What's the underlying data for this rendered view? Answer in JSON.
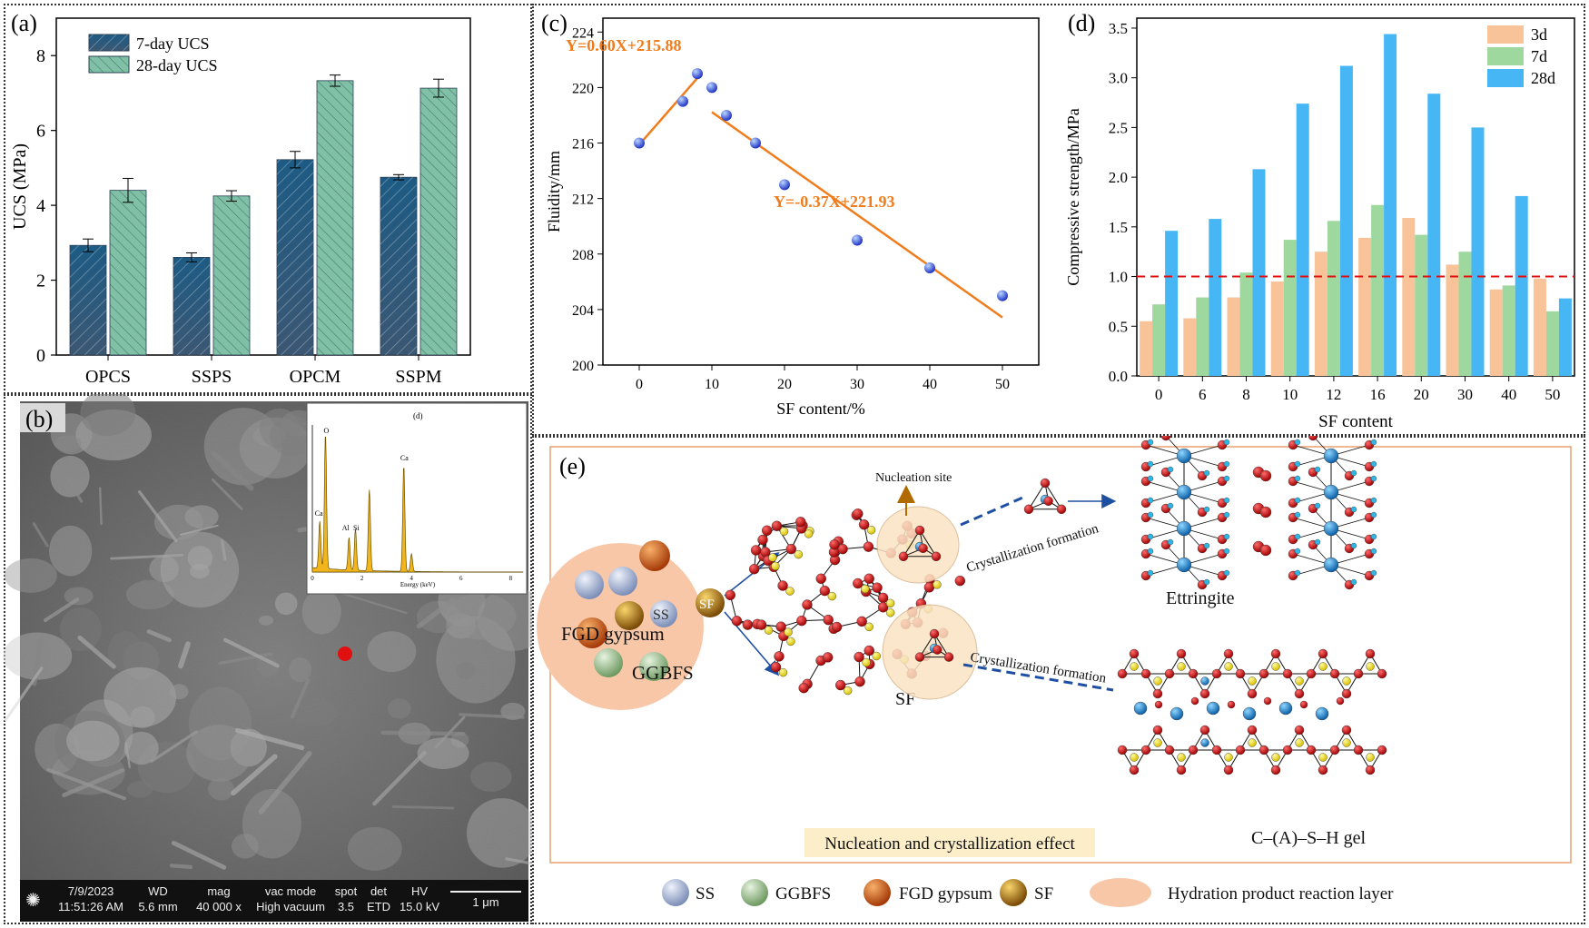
{
  "panels": {
    "a": "(a)",
    "b": "(b)",
    "c": "(c)",
    "d": "(d)",
    "e": "(e)"
  },
  "chart_data": [
    {
      "id": "a",
      "type": "bar",
      "ylabel": "UCS (MPa)",
      "ylim": [
        0,
        9
      ],
      "yticks": [
        0,
        2,
        4,
        6,
        8
      ],
      "categories": [
        "OPCS",
        "SSPS",
        "OPCM",
        "SSPM"
      ],
      "series": [
        {
          "name": "7-day UCS",
          "values": [
            2.93,
            2.61,
            5.22,
            4.75
          ],
          "errors": [
            0.17,
            0.12,
            0.22,
            0.07
          ],
          "color": "#1f5a7c"
        },
        {
          "name": "28-day UCS",
          "values": [
            4.4,
            4.25,
            7.33,
            7.13
          ],
          "errors": [
            0.32,
            0.14,
            0.15,
            0.24
          ],
          "color": "#7fc0a6"
        }
      ],
      "legend": "top-left"
    },
    {
      "id": "c",
      "type": "scatter",
      "xlabel": "SF content/%",
      "ylabel": "Fluidity/mm",
      "xlim": [
        -5,
        55
      ],
      "ylim": [
        200,
        225
      ],
      "xticks": [
        0,
        10,
        20,
        30,
        40,
        50
      ],
      "yticks": [
        200,
        204,
        208,
        212,
        216,
        220,
        224
      ],
      "points": {
        "x": [
          0,
          6,
          8,
          10,
          12,
          16,
          20,
          30,
          40,
          50
        ],
        "y": [
          216,
          219,
          221,
          220,
          218,
          216,
          213,
          209,
          207,
          205
        ]
      },
      "fits": [
        {
          "equation": "Y=0.60X+215.88",
          "slope": 0.6,
          "intercept": 215.88,
          "x_range": [
            0,
            8
          ]
        },
        {
          "equation": "Y=-0.37X+221.93",
          "slope": -0.37,
          "intercept": 221.93,
          "x_range": [
            10,
            50
          ]
        }
      ]
    },
    {
      "id": "d",
      "type": "bar",
      "xlabel": "SF content",
      "ylabel": "Compressive strength/MPa",
      "ylim": [
        0,
        3.6
      ],
      "yticks": [
        0.0,
        0.5,
        1.0,
        1.5,
        2.0,
        2.5,
        3.0,
        3.5
      ],
      "categories": [
        "0",
        "6",
        "8",
        "10",
        "12",
        "16",
        "20",
        "30",
        "40",
        "50"
      ],
      "series": [
        {
          "name": "3d",
          "values": [
            0.55,
            0.58,
            0.79,
            0.95,
            1.25,
            1.39,
            1.59,
            1.12,
            0.87,
            0.98
          ],
          "color": "#f9c39a"
        },
        {
          "name": "7d",
          "values": [
            0.72,
            0.79,
            1.04,
            1.37,
            1.56,
            1.72,
            1.42,
            1.25,
            0.91,
            0.65
          ],
          "color": "#9fd89f"
        },
        {
          "name": "28d",
          "values": [
            1.46,
            1.58,
            2.08,
            2.74,
            3.12,
            3.44,
            2.84,
            2.5,
            1.81,
            0.78
          ],
          "color": "#46b6f5"
        }
      ],
      "reference_line": 1.0,
      "legend": "top-right"
    }
  ],
  "eds": {
    "title": "(d)",
    "xlabel": "Energy (keV)",
    "peaks": [
      "Ca",
      "O",
      "Al",
      "Si",
      "Ca"
    ],
    "ticks": [
      "0",
      "2",
      "4",
      "6",
      "8"
    ]
  },
  "sem": {
    "date": "7/9/2023",
    "time": "11:51:26 AM",
    "wd_label": "WD",
    "wd": "5.6 mm",
    "mag_label": "mag",
    "mag": "40 000 x",
    "vac_label": "vac mode",
    "vac": "High vacuum",
    "spot_label": "spot",
    "spot": "3.5",
    "det_label": "det",
    "det": "ETD",
    "hv_label": "HV",
    "hv": "15.0 kV",
    "scale": "1 μm"
  },
  "diagram": {
    "particles": {
      "ss": "SS",
      "fgd": "FGD gypsum",
      "ggbfs": "GGBFS",
      "sf": "SF"
    },
    "nucleation_site": "Nucleation site",
    "cryst1": "Crystallization formation",
    "cryst2": "Crystallization formation",
    "sf_label": "SF",
    "ettringite": "Ettringite",
    "csh": "C–(A)–S–H gel",
    "effect": "Nucleation and crystallization effect"
  },
  "legend_e": {
    "items": [
      "SS",
      "GGBFS",
      "FGD gypsum",
      "SF",
      "Hydration product reaction layer"
    ]
  }
}
